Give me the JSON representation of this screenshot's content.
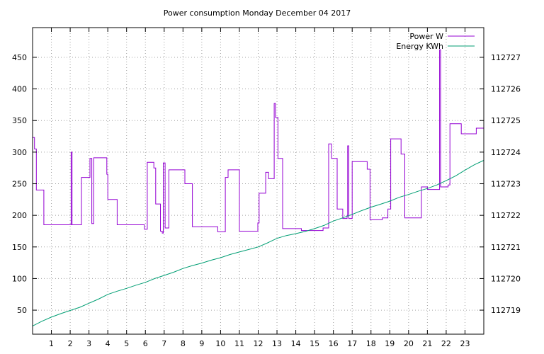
{
  "chart_data": {
    "type": "line",
    "title": "Power consumption Monday December 04 2017",
    "xlabel": "",
    "ylabel": "",
    "x_ticks": [
      "1",
      "2",
      "3",
      "4",
      "5",
      "6",
      "7",
      "8",
      "9",
      "10",
      "11",
      "12",
      "13",
      "14",
      "15",
      "16",
      "17",
      "18",
      "19",
      "20",
      "21",
      "22",
      "23"
    ],
    "xlim": [
      0,
      24
    ],
    "y_left_ticks": [
      "50",
      "100",
      "150",
      "200",
      "250",
      "300",
      "350",
      "400",
      "450"
    ],
    "ylim_left": [
      12,
      497
    ],
    "y_right_ticks": [
      "112719",
      "112720",
      "112721",
      "112722",
      "112723",
      "112724",
      "112725",
      "112726",
      "112727"
    ],
    "ylim_right": [
      112718.24,
      112727.94
    ],
    "grid": true,
    "legend_placement": "top-right",
    "colors": {
      "power": "#9400d3",
      "energy": "#009e73"
    },
    "series": [
      {
        "name": "Power W",
        "axis": "left",
        "step": true,
        "x": [
          0,
          0.1,
          0.2,
          0.6,
          1.0,
          1.4,
          1.9,
          2.05,
          2.1,
          2.6,
          3.0,
          3.05,
          3.15,
          3.25,
          3.35,
          3.8,
          3.95,
          4.0,
          4.1,
          4.5,
          5.0,
          5.5,
          5.9,
          5.95,
          6.1,
          6.45,
          6.55,
          6.8,
          6.9,
          6.95,
          7.05,
          7.25,
          7.7,
          7.95,
          8.1,
          8.5,
          9.0,
          9.4,
          9.85,
          10.25,
          10.4,
          11.0,
          11.3,
          11.45,
          11.9,
          11.98,
          12.05,
          12.4,
          12.55,
          12.85,
          12.92,
          13.05,
          13.3,
          13.8,
          14.3,
          14.8,
          15.35,
          15.45,
          15.75,
          15.9,
          16.2,
          16.5,
          16.7,
          16.73,
          16.76,
          16.82,
          17.0,
          17.4,
          17.7,
          17.8,
          17.95,
          18.05,
          18.3,
          18.6,
          18.9,
          19.05,
          19.45,
          19.6,
          19.8,
          20.3,
          20.6,
          20.68,
          21.0,
          21.4,
          21.6,
          21.65,
          21.7,
          21.9,
          22.1,
          22.2,
          22.5,
          22.8,
          23.1,
          23.55,
          23.6,
          24
        ],
        "values": [
          323,
          305,
          240,
          185,
          185,
          185,
          185,
          300,
          185,
          260,
          260,
          290,
          187,
          291,
          291,
          291,
          265,
          225,
          225,
          185,
          185,
          185,
          185,
          178,
          284,
          275,
          218,
          175,
          172,
          283,
          180,
          272,
          272,
          272,
          250,
          182,
          182,
          182,
          174,
          260,
          272,
          175,
          175,
          175,
          175,
          188,
          235,
          268,
          258,
          377,
          355,
          290,
          179,
          179,
          176,
          176,
          176,
          180,
          313,
          290,
          210,
          195,
          195,
          200,
          310,
          195,
          285,
          285,
          285,
          273,
          193,
          193,
          193,
          196,
          210,
          321,
          321,
          297,
          196,
          196,
          196,
          245,
          241,
          241,
          241,
          462,
          245,
          245,
          248,
          345,
          345,
          329,
          329,
          329,
          338,
          243
        ]
      },
      {
        "name": "Energy KWh",
        "axis": "right",
        "step": false,
        "x": [
          0,
          0.5,
          1.0,
          1.5,
          2.0,
          2.5,
          3.0,
          3.5,
          4.0,
          4.5,
          5.0,
          5.5,
          6.0,
          6.5,
          7.0,
          7.5,
          8.0,
          8.5,
          9.0,
          9.5,
          10.0,
          10.5,
          11.0,
          11.5,
          12.0,
          12.5,
          13.0,
          13.5,
          14.0,
          14.5,
          15.0,
          15.5,
          16.0,
          16.5,
          17.0,
          17.5,
          18.0,
          18.5,
          19.0,
          19.5,
          20.0,
          20.5,
          21.0,
          21.5,
          22.0,
          22.5,
          23.0,
          23.5,
          24
        ],
        "values": [
          112718.5,
          112718.65,
          112718.78,
          112718.89,
          112718.99,
          112719.09,
          112719.22,
          112719.35,
          112719.5,
          112719.6,
          112719.69,
          112719.79,
          112719.88,
          112720.0,
          112720.1,
          112720.2,
          112720.32,
          112720.41,
          112720.49,
          112720.58,
          112720.66,
          112720.76,
          112720.84,
          112720.92,
          112721.0,
          112721.13,
          112721.27,
          112721.36,
          112721.42,
          112721.49,
          112721.58,
          112721.68,
          112721.82,
          112721.92,
          112722.03,
          112722.15,
          112722.26,
          112722.35,
          112722.45,
          112722.57,
          112722.66,
          112722.76,
          112722.85,
          112722.96,
          112723.1,
          112723.25,
          112723.43,
          112723.6,
          112723.74
        ]
      }
    ]
  }
}
